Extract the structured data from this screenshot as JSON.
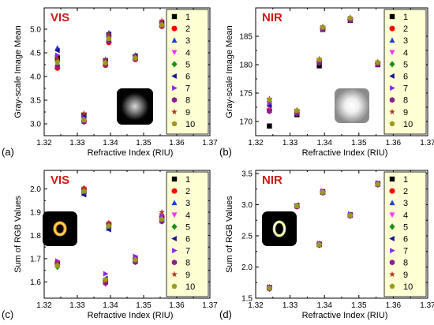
{
  "legend": {
    "entries": [
      "1",
      "2",
      "3",
      "4",
      "5",
      "6",
      "7",
      "8",
      "9",
      "10"
    ],
    "colors": [
      "#000000",
      "#ff0000",
      "#1c3fd6",
      "#ff33ff",
      "#1b8f1b",
      "#1a1a8f",
      "#8a2be2",
      "#8b1f8b",
      "#b0331f",
      "#9a9a1f"
    ],
    "markers": [
      "square",
      "circle",
      "triangle-up",
      "triangle-down",
      "diamond",
      "triangle-left",
      "triangle-right",
      "hexagon",
      "star",
      "pentagon"
    ]
  },
  "chart_data": [
    {
      "type": "scatter",
      "panel_label": "(a)",
      "tag": "VIS",
      "xlabel": "Refractive Index (RIU)",
      "ylabel": "Gray-scale Image Mean",
      "xlim": [
        1.32,
        1.37
      ],
      "ylim": [
        2.75,
        5.45
      ],
      "xticks": [
        "1.32",
        "1.33",
        "1.34",
        "1.35",
        "1.36",
        "1.37"
      ],
      "yticks": [
        "3.0",
        "3.5",
        "4.0",
        "4.5",
        "5.0"
      ],
      "x": [
        1.324,
        1.332,
        1.3385,
        1.3395,
        1.3475,
        1.3555
      ],
      "inset": "vis-spot",
      "series": [
        {
          "name": "1",
          "values": [
            4.4,
            3.18,
            4.33,
            4.88,
            4.42,
            5.12
          ]
        },
        {
          "name": "2",
          "values": [
            4.18,
            3.06,
            4.24,
            4.72,
            4.36,
            5.06
          ]
        },
        {
          "name": "3",
          "values": [
            4.6,
            3.2,
            4.36,
            4.92,
            4.45,
            5.16
          ]
        },
        {
          "name": "4",
          "values": [
            4.28,
            3.1,
            4.28,
            4.78,
            4.38,
            5.08
          ]
        },
        {
          "name": "5",
          "values": [
            4.34,
            3.14,
            4.3,
            4.83,
            4.4,
            5.1
          ]
        },
        {
          "name": "6",
          "values": [
            4.55,
            3.16,
            4.34,
            4.9,
            4.44,
            5.14
          ]
        },
        {
          "name": "7",
          "values": [
            4.45,
            3.12,
            4.31,
            4.85,
            4.41,
            5.11
          ]
        },
        {
          "name": "8",
          "values": [
            4.22,
            3.04,
            4.26,
            4.75,
            4.37,
            5.07
          ]
        },
        {
          "name": "9",
          "values": [
            4.38,
            3.22,
            4.35,
            4.89,
            4.43,
            5.18
          ]
        },
        {
          "name": "10",
          "values": [
            4.3,
            3.08,
            4.29,
            4.8,
            4.39,
            5.09
          ]
        }
      ]
    },
    {
      "type": "scatter",
      "panel_label": "(b)",
      "tag": "NIR",
      "xlabel": "Refractive Index (RIU)",
      "ylabel": "Gray-scale Image Mean",
      "xlim": [
        1.32,
        1.37
      ],
      "ylim": [
        167.5,
        190.0
      ],
      "xticks": [
        "1.32",
        "1.33",
        "1.34",
        "1.35",
        "1.36",
        "1.37"
      ],
      "yticks": [
        "170",
        "175",
        "180",
        "185"
      ],
      "x": [
        1.324,
        1.332,
        1.3385,
        1.3395,
        1.3475,
        1.3555
      ],
      "inset": "nir-spot",
      "series": [
        {
          "name": "1",
          "values": [
            169.2,
            171.2,
            179.8,
            186.2,
            187.8,
            180.0
          ]
        },
        {
          "name": "2",
          "values": [
            172.0,
            171.5,
            180.5,
            186.4,
            188.0,
            180.2
          ]
        },
        {
          "name": "3",
          "values": [
            173.0,
            171.8,
            180.8,
            186.5,
            188.1,
            180.3
          ]
        },
        {
          "name": "4",
          "values": [
            172.5,
            171.6,
            180.4,
            186.3,
            187.9,
            180.1
          ]
        },
        {
          "name": "5",
          "values": [
            173.5,
            171.9,
            180.9,
            186.6,
            188.2,
            180.4
          ]
        },
        {
          "name": "6",
          "values": [
            172.8,
            171.7,
            180.6,
            186.4,
            188.0,
            180.2
          ]
        },
        {
          "name": "7",
          "values": [
            173.2,
            171.8,
            180.7,
            186.5,
            188.1,
            180.3
          ]
        },
        {
          "name": "8",
          "values": [
            171.8,
            171.4,
            180.3,
            186.2,
            187.8,
            180.0
          ]
        },
        {
          "name": "9",
          "values": [
            174.0,
            172.0,
            181.0,
            186.7,
            188.3,
            180.5
          ]
        },
        {
          "name": "10",
          "values": [
            173.8,
            171.9,
            180.9,
            186.6,
            188.2,
            180.4
          ]
        }
      ]
    },
    {
      "type": "scatter",
      "panel_label": "(c)",
      "tag": "VIS",
      "xlabel": "Refractive Index (RIU)",
      "ylabel": "Sum of RGB Values",
      "xlim": [
        1.32,
        1.37
      ],
      "ylim": [
        1.53,
        2.08
      ],
      "xticks": [
        "1.32",
        "1.33",
        "1.34",
        "1.35",
        "1.36",
        "1.37"
      ],
      "yticks": [
        "1.6",
        "1.7",
        "1.8",
        "1.9",
        "2.0"
      ],
      "x": [
        1.324,
        1.332,
        1.3385,
        1.3395,
        1.3475,
        1.3555
      ],
      "inset": "vis-ring",
      "series": [
        {
          "name": "1",
          "values": [
            1.68,
            1.99,
            1.6,
            1.84,
            1.69,
            1.87
          ]
        },
        {
          "name": "2",
          "values": [
            1.675,
            2.0,
            1.605,
            1.85,
            1.7,
            1.88
          ]
        },
        {
          "name": "3",
          "values": [
            1.685,
            1.98,
            1.61,
            1.83,
            1.695,
            1.875
          ]
        },
        {
          "name": "4",
          "values": [
            1.67,
            1.985,
            1.59,
            1.835,
            1.705,
            1.865
          ]
        },
        {
          "name": "5",
          "values": [
            1.665,
            1.995,
            1.6,
            1.845,
            1.69,
            1.87
          ]
        },
        {
          "name": "6",
          "values": [
            1.68,
            1.975,
            1.615,
            1.825,
            1.7,
            1.88
          ]
        },
        {
          "name": "7",
          "values": [
            1.69,
            1.99,
            1.635,
            1.84,
            1.71,
            1.885
          ]
        },
        {
          "name": "8",
          "values": [
            1.675,
            1.995,
            1.595,
            1.85,
            1.685,
            1.86
          ]
        },
        {
          "name": "9",
          "values": [
            1.685,
            2.005,
            1.605,
            1.855,
            1.7,
            1.9
          ]
        },
        {
          "name": "10",
          "values": [
            1.67,
            1.99,
            1.61,
            1.84,
            1.695,
            1.87
          ]
        }
      ]
    },
    {
      "type": "scatter",
      "panel_label": "(d)",
      "tag": "NIR",
      "xlabel": "Refractive Index (RIU)",
      "ylabel": "Sum of RGB Values",
      "xlim": [
        1.32,
        1.37
      ],
      "ylim": [
        1.5,
        3.55
      ],
      "xticks": [
        "1.32",
        "1.33",
        "1.34",
        "1.35",
        "1.36",
        "1.37"
      ],
      "yticks": [
        "1.5",
        "2.0",
        "2.5",
        "3.0",
        "3.5"
      ],
      "x": [
        1.324,
        1.332,
        1.3385,
        1.3395,
        1.3475,
        1.3555
      ],
      "inset": "nir-ring",
      "series": [
        {
          "name": "1",
          "values": [
            1.67,
            2.98,
            2.36,
            3.2,
            2.83,
            3.33
          ]
        },
        {
          "name": "2",
          "values": [
            1.66,
            2.97,
            2.37,
            3.21,
            2.84,
            3.34
          ]
        },
        {
          "name": "3",
          "values": [
            1.68,
            2.99,
            2.38,
            3.21,
            2.84,
            3.34
          ]
        },
        {
          "name": "4",
          "values": [
            1.65,
            2.97,
            2.35,
            3.19,
            2.82,
            3.32
          ]
        },
        {
          "name": "5",
          "values": [
            1.66,
            2.98,
            2.36,
            3.2,
            2.83,
            3.33
          ]
        },
        {
          "name": "6",
          "values": [
            1.67,
            2.99,
            2.37,
            3.21,
            2.84,
            3.34
          ]
        },
        {
          "name": "7",
          "values": [
            1.68,
            2.98,
            2.38,
            3.22,
            2.85,
            3.35
          ]
        },
        {
          "name": "8",
          "values": [
            1.65,
            2.97,
            2.35,
            3.19,
            2.82,
            3.32
          ]
        },
        {
          "name": "9",
          "values": [
            1.67,
            2.99,
            2.37,
            3.2,
            2.83,
            3.34
          ]
        },
        {
          "name": "10",
          "values": [
            1.66,
            2.98,
            2.36,
            3.2,
            2.83,
            3.33
          ]
        }
      ]
    }
  ]
}
